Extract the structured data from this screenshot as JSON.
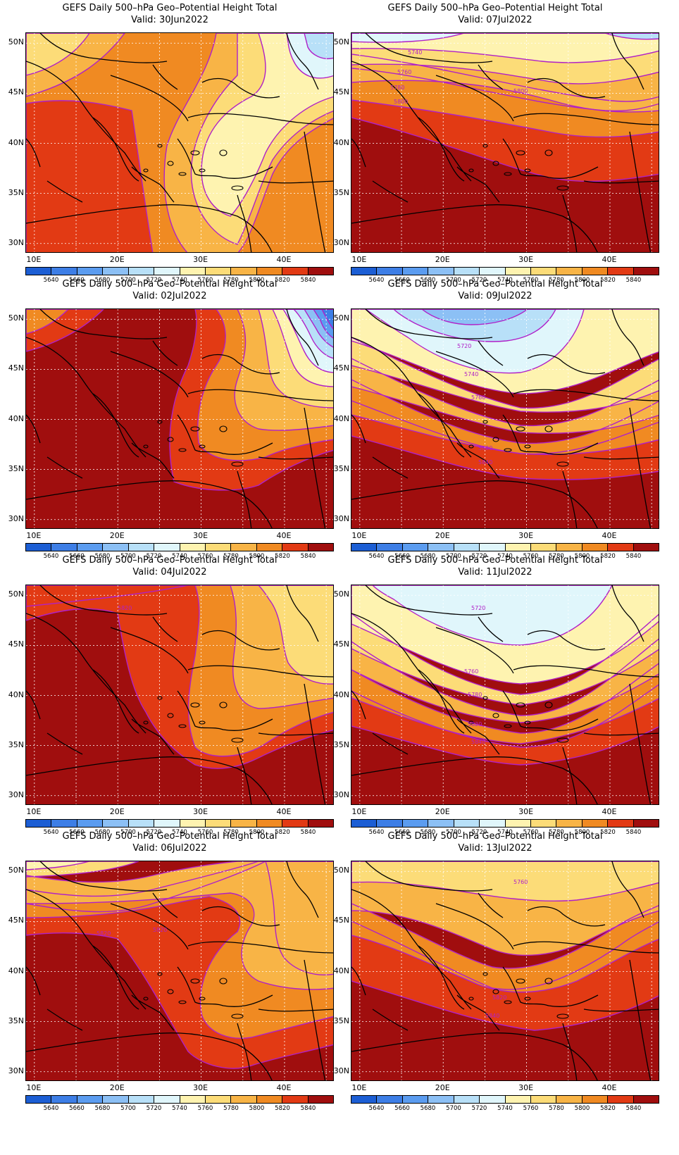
{
  "figure": {
    "title": "GEFS Daily 500–hPa Geo–Potential Height Total",
    "valid_prefix": "Valid: "
  },
  "axes": {
    "lat_labels": [
      "50N",
      "45N",
      "40N",
      "35N",
      "30N"
    ],
    "lon_labels": [
      "10E",
      "20E",
      "30E",
      "40E"
    ],
    "lat_range": [
      29,
      51
    ],
    "lon_range": [
      9,
      46
    ]
  },
  "colorbar": {
    "levels": [
      "5640",
      "5660",
      "5680",
      "5700",
      "5720",
      "5740",
      "5760",
      "5780",
      "5800",
      "5820",
      "5840"
    ],
    "colors": [
      "#1c5ed4",
      "#3d7ee6",
      "#5b9cf0",
      "#8cc0f5",
      "#b8e0f8",
      "#e0f6fb",
      "#fef3b0",
      "#fcdc78",
      "#f8b446",
      "#f08a22",
      "#e23a14",
      "#a00e0e"
    ]
  },
  "contour_line_color": "#b020c8",
  "panels": [
    {
      "valid": "30Jun2022",
      "contour_labels": []
    },
    {
      "valid": "07Jul2022",
      "contour_labels": [
        "5740",
        "5760",
        "5780",
        "5800",
        "5800"
      ]
    },
    {
      "valid": "02Jul2022",
      "contour_labels": []
    },
    {
      "valid": "09Jul2022",
      "contour_labels": [
        "5720",
        "5740",
        "5760",
        "5820",
        "5840"
      ]
    },
    {
      "valid": "04Jul2022",
      "contour_labels": [
        "5820"
      ]
    },
    {
      "valid": "11Jul2022",
      "contour_labels": [
        "5720",
        "5760",
        "5780",
        "5820",
        "5840"
      ]
    },
    {
      "valid": "06Jul2022",
      "contour_labels": [
        "5820",
        "5820"
      ]
    },
    {
      "valid": "13Jul2022",
      "contour_labels": [
        "5760",
        "5820",
        "5840"
      ]
    }
  ]
}
